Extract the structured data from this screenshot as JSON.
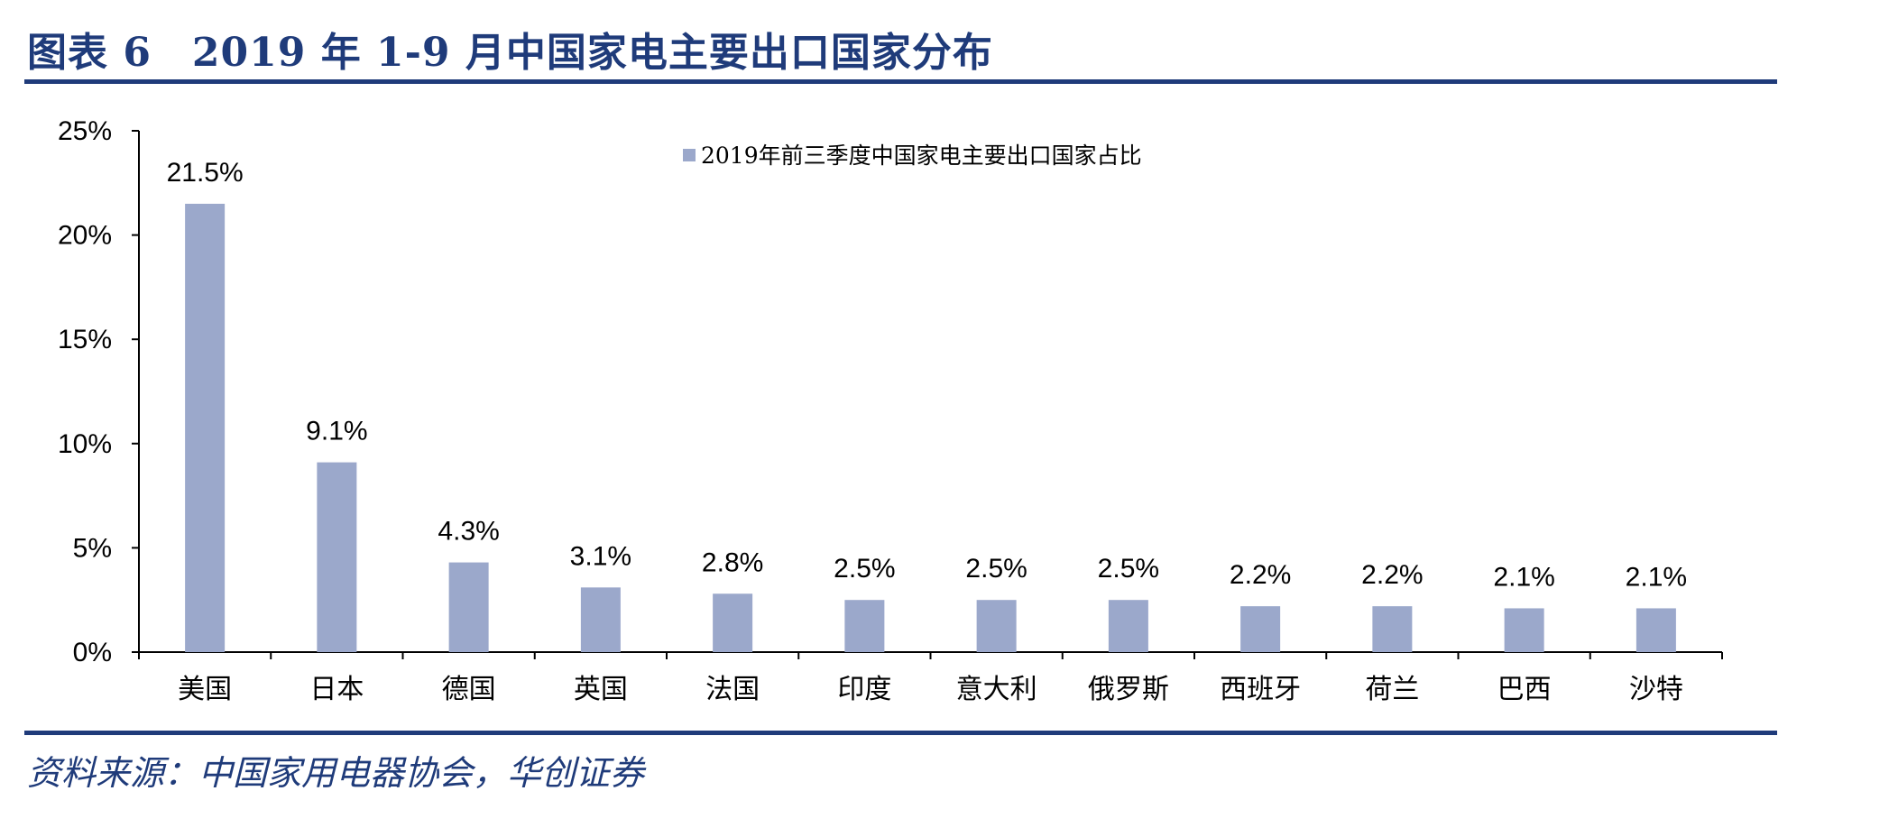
{
  "header": {
    "title": "图表 6　2019 年 1-9 月中国家电主要出口国家分布"
  },
  "footer": {
    "source": "资料来源：中国家用电器协会，华创证券"
  },
  "colors": {
    "bar": "#9ba8cb",
    "accent": "#1f3b7a",
    "axis": "#000000"
  },
  "chart_data": {
    "type": "bar",
    "categories": [
      "美国",
      "日本",
      "德国",
      "英国",
      "法国",
      "印度",
      "意大利",
      "俄罗斯",
      "西班牙",
      "荷兰",
      "巴西",
      "沙特"
    ],
    "series": [
      {
        "name": "2019年前三季度中国家电主要出口国家占比",
        "values": [
          21.5,
          9.1,
          4.3,
          3.1,
          2.8,
          2.5,
          2.5,
          2.5,
          2.2,
          2.2,
          2.1,
          2.1
        ]
      }
    ],
    "data_labels": [
      "21.5%",
      "9.1%",
      "4.3%",
      "3.1%",
      "2.8%",
      "2.5%",
      "2.5%",
      "2.5%",
      "2.2%",
      "2.2%",
      "2.1%",
      "2.1%"
    ],
    "yticks": [
      "0%",
      "5%",
      "10%",
      "15%",
      "20%",
      "25%"
    ],
    "ylim": [
      0,
      25
    ],
    "ytick_step": 5,
    "legend_position": "top-center",
    "grid": false
  }
}
